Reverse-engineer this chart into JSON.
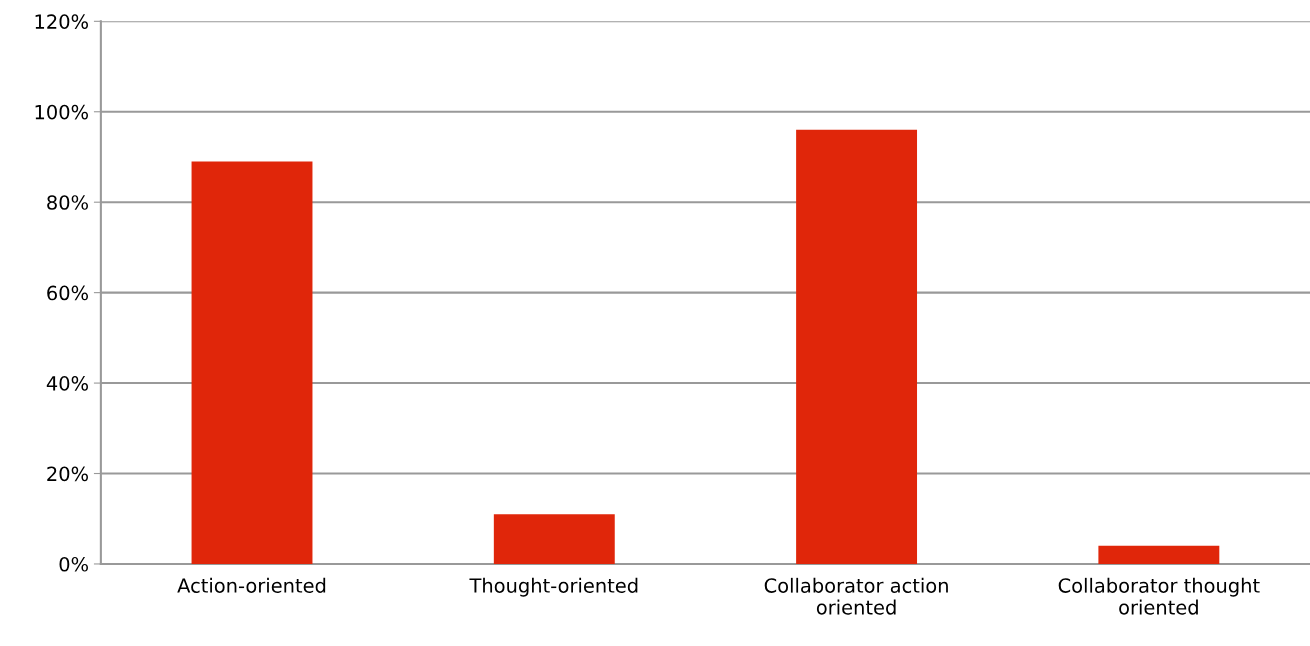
{
  "chart_data": {
    "type": "bar",
    "categories": [
      "Action-oriented",
      "Thought-oriented",
      "Collaborator action\noriented",
      "Collaborator thought\noriented"
    ],
    "values": [
      89,
      11,
      96,
      4
    ],
    "color": "#e0260a",
    "ylim": [
      0,
      120
    ],
    "yticks": [
      {
        "value": 0,
        "label": "0%"
      },
      {
        "value": 20,
        "label": "20%"
      },
      {
        "value": 40,
        "label": "40%"
      },
      {
        "value": 60,
        "label": "60%"
      },
      {
        "value": 80,
        "label": "80%"
      },
      {
        "value": 100,
        "label": "100%"
      },
      {
        "value": 120,
        "label": "120%"
      }
    ],
    "grid": "y"
  }
}
